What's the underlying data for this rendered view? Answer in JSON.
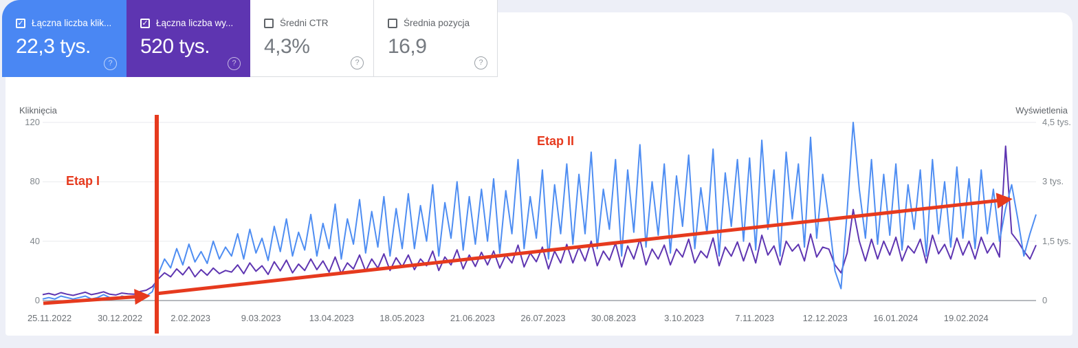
{
  "cards": [
    {
      "label": "Łączna liczba klik...",
      "value": "22,3 tys.",
      "check": "✓",
      "checked": true,
      "color": "#4a87f3",
      "help_icon": "?"
    },
    {
      "label": "Łączna liczba wy...",
      "value": "520 tys.",
      "check": "✓",
      "checked": true,
      "color": "#5e35b1",
      "help_icon": "?"
    },
    {
      "label": "Średni CTR",
      "value": "4,3%",
      "check": "",
      "checked": false,
      "color": "#ffffff",
      "help_icon": "?"
    },
    {
      "label": "Średnia pozycja",
      "value": "16,9",
      "check": "",
      "checked": false,
      "color": "#ffffff",
      "help_icon": "?"
    }
  ],
  "chart_data": {
    "type": "line",
    "left_axis": {
      "title": "Kliknięcia",
      "ticks": [
        "120",
        "80",
        "40",
        "0"
      ],
      "ylim": [
        0,
        120
      ],
      "grid": true
    },
    "right_axis": {
      "title": "Wyświetlenia",
      "ticks": [
        "4,5 tys.",
        "3 tys.",
        "1,5 tys.",
        "0"
      ],
      "ylim": [
        0,
        4500
      ]
    },
    "x_tick_labels": [
      "25.11.2022",
      "30.12.2022",
      "2.02.2023",
      "9.03.2023",
      "13.04.2023",
      "18.05.2023",
      "21.06.2023",
      "26.07.2023",
      "30.08.2023",
      "3.10.2023",
      "7.11.2023",
      "12.12.2023",
      "16.01.2024",
      "19.02.2024"
    ],
    "series": [
      {
        "name": "Wyświetlenia",
        "axis": "right",
        "color": "#5e35b1",
        "values": [
          150,
          180,
          140,
          200,
          160,
          130,
          170,
          210,
          150,
          180,
          220,
          160,
          140,
          190,
          170,
          160,
          230,
          260,
          350,
          550,
          700,
          600,
          800,
          650,
          850,
          600,
          780,
          640,
          820,
          680,
          760,
          720,
          900,
          680,
          950,
          740,
          880,
          660,
          980,
          750,
          1020,
          700,
          920,
          760,
          1050,
          780,
          1000,
          720,
          1100,
          680,
          950,
          800,
          1150,
          740,
          1050,
          820,
          1180,
          760,
          1080,
          850,
          1150,
          780,
          1050,
          880,
          1250,
          760,
          1100,
          900,
          1280,
          800,
          1150,
          860,
          1220,
          900,
          1250,
          820,
          1150,
          950,
          1400,
          850,
          1200,
          980,
          1350,
          800,
          1250,
          950,
          1420,
          950,
          1350,
          1000,
          1500,
          880,
          1250,
          1020,
          1450,
          850,
          1380,
          1050,
          1550,
          900,
          1300,
          1050,
          1400,
          900,
          1300,
          1100,
          1550,
          950,
          1250,
          1080,
          1580,
          880,
          1350,
          1120,
          1480,
          1000,
          1450,
          950,
          1650,
          1150,
          1380,
          900,
          1500,
          1250,
          1420,
          1000,
          1680,
          1100,
          1350,
          1300,
          900,
          700,
          1200,
          2300,
          1500,
          1000,
          1550,
          1050,
          1500,
          1150,
          1600,
          1000,
          1380,
          1200,
          1550,
          950,
          1650,
          1180,
          1420,
          1050,
          1580,
          1150,
          1500,
          1050,
          1600,
          1200,
          1450,
          1100,
          3900,
          1700,
          1500,
          1250,
          1050,
          1400
        ]
      },
      {
        "name": "Kliknięcia",
        "axis": "left",
        "color": "#4e8df2",
        "values": [
          1,
          2,
          1,
          3,
          2,
          1,
          2,
          3,
          1,
          2,
          4,
          2,
          1,
          3,
          2,
          2,
          4,
          3,
          6,
          18,
          28,
          22,
          35,
          24,
          38,
          26,
          33,
          25,
          40,
          28,
          36,
          30,
          45,
          28,
          48,
          32,
          42,
          27,
          50,
          33,
          55,
          30,
          46,
          34,
          58,
          30,
          52,
          35,
          65,
          28,
          55,
          38,
          68,
          32,
          60,
          36,
          70,
          30,
          62,
          35,
          72,
          35,
          64,
          40,
          78,
          30,
          66,
          42,
          80,
          34,
          70,
          38,
          75,
          40,
          82,
          32,
          74,
          45,
          95,
          35,
          70,
          42,
          88,
          28,
          78,
          45,
          92,
          38,
          85,
          45,
          100,
          35,
          75,
          48,
          95,
          30,
          88,
          46,
          105,
          36,
          80,
          44,
          92,
          32,
          84,
          50,
          98,
          35,
          76,
          45,
          102,
          30,
          86,
          50,
          95,
          40,
          96,
          34,
          108,
          48,
          88,
          30,
          100,
          55,
          92,
          36,
          110,
          42,
          85,
          55,
          20,
          8,
          60,
          120,
          75,
          42,
          95,
          38,
          85,
          44,
          92,
          34,
          78,
          48,
          88,
          30,
          95,
          45,
          80,
          36,
          90,
          42,
          82,
          35,
          88,
          45,
          75,
          40,
          62,
          78,
          55,
          30,
          45,
          58
        ]
      }
    ],
    "annotations": {
      "stage1_label": "Etap I",
      "stage2_label": "Etap II",
      "color": "#e63a1e"
    }
  }
}
